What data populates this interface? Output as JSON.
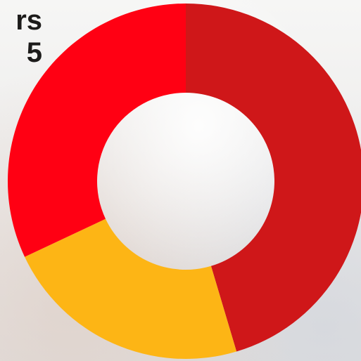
{
  "title_fragment": {
    "line1": "rs",
    "line2": "5"
  },
  "chart_data": {
    "type": "pie",
    "donut": true,
    "slices": [
      {
        "value": 45.4,
        "color": "#cf1719"
      },
      {
        "value": 22.6,
        "color": "#fdb515"
      },
      {
        "value": 32.0,
        "color": "#ff0013"
      }
    ],
    "start": "top",
    "direction": "clockwise",
    "legend": "none"
  }
}
